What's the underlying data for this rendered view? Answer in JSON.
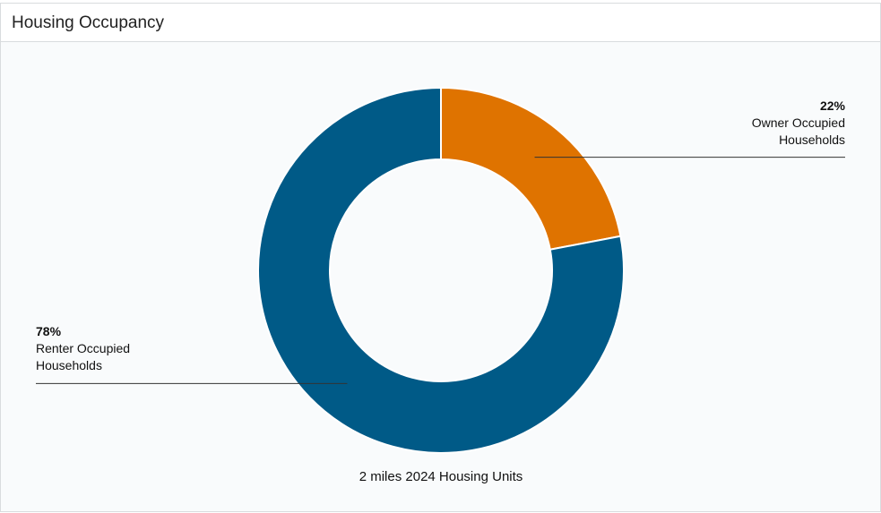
{
  "chart_data": {
    "type": "pie",
    "donut": true,
    "title": "Housing Occupancy",
    "categories": [
      "Owner Occupied Households",
      "Renter Occupied Households"
    ],
    "values": [
      22,
      78
    ],
    "value_labels": [
      "22%",
      "78%"
    ],
    "colors": [
      "#df7300",
      "#005a87"
    ],
    "caption": "2 miles 2024 Housing Units"
  }
}
